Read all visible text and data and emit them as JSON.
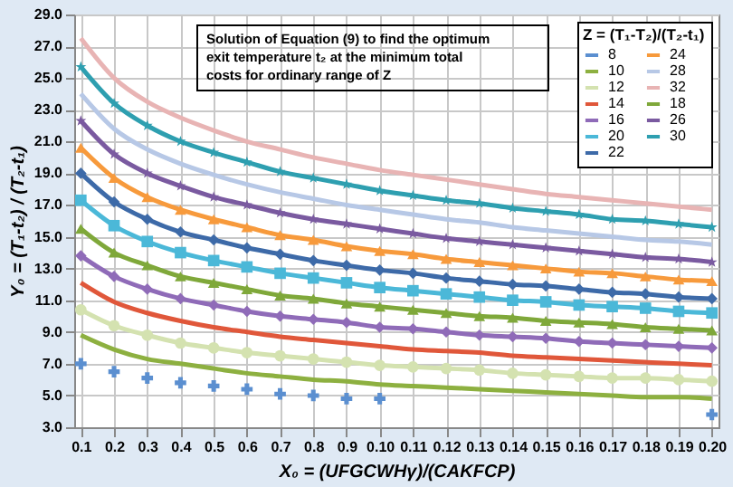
{
  "chart_data": {
    "type": "line",
    "annotations": [
      "Solution of Equation (9) to find the optimum\nexit temperature t₂ at the minimum total\ncosts for ordinary range of Z"
    ],
    "xlabel": "X₀ = (UFGCWHγ)/(CAKFCP)",
    "ylabel": "Y₀ = (T₁-t₂) / (T₂-t₁)",
    "legend_title": "Z = (T₁-T₂)/(T₂-t₁)",
    "categories": [
      "0.1",
      "0.2",
      "0.3",
      "0.4",
      "0.5",
      "0.6",
      "0.7",
      "0.8",
      "0.9",
      "0.10",
      "0.11",
      "0.12",
      "0.13",
      "0.14",
      "0.15",
      "0.16",
      "0.17",
      "0.18",
      "0.19",
      "0.20"
    ],
    "ylim": [
      3,
      29
    ],
    "yticks": [
      {
        "value": 3,
        "label": "3.0"
      },
      {
        "value": 5,
        "label": "5.0"
      },
      {
        "value": 7,
        "label": "7.0"
      },
      {
        "value": 9,
        "label": "9.0"
      },
      {
        "value": 11,
        "label": "11.0"
      },
      {
        "value": 13,
        "label": "13.0"
      },
      {
        "value": 15,
        "label": "15.0"
      },
      {
        "value": 17,
        "label": "17.0"
      },
      {
        "value": 19,
        "label": "19.0"
      },
      {
        "value": 21,
        "label": "21.0"
      },
      {
        "value": 23,
        "label": "23.0"
      },
      {
        "value": 25,
        "label": "25.0"
      },
      {
        "value": 27,
        "label": "27.0"
      },
      {
        "value": 29,
        "label": "29.0"
      }
    ],
    "grid": true,
    "legend": "top right",
    "series": [
      {
        "name": "8",
        "type": "scatter",
        "marker": "cross",
        "color": "#5b8fd0",
        "values": [
          7.0,
          6.5,
          6.1,
          5.8,
          5.6,
          5.4,
          5.1,
          5.0,
          4.8,
          4.8,
          null,
          null,
          null,
          null,
          null,
          null,
          null,
          null,
          null,
          3.8
        ]
      },
      {
        "name": "10",
        "marker": "none",
        "color": "#8db040",
        "values": [
          8.8,
          7.9,
          7.3,
          7.0,
          6.7,
          6.4,
          6.2,
          6.0,
          5.9,
          5.7,
          5.6,
          5.5,
          5.4,
          5.3,
          5.2,
          5.1,
          5.0,
          4.9,
          4.9,
          4.8
        ]
      },
      {
        "name": "12",
        "marker": "circle",
        "color": "#d4e2b0",
        "values": [
          10.4,
          9.4,
          8.8,
          8.3,
          8.0,
          7.7,
          7.5,
          7.3,
          7.1,
          6.9,
          6.8,
          6.7,
          6.6,
          6.4,
          6.3,
          6.2,
          6.1,
          6.1,
          6.0,
          5.9
        ]
      },
      {
        "name": "14",
        "marker": "none",
        "color": "#e0573a",
        "values": [
          12.1,
          10.9,
          10.2,
          9.7,
          9.3,
          9.0,
          8.7,
          8.5,
          8.3,
          8.1,
          7.9,
          7.8,
          7.7,
          7.5,
          7.4,
          7.3,
          7.2,
          7.1,
          7.0,
          6.9
        ]
      },
      {
        "name": "16",
        "marker": "diamond",
        "color": "#8f6bb8",
        "values": [
          13.8,
          12.5,
          11.7,
          11.1,
          10.7,
          10.3,
          10.0,
          9.8,
          9.6,
          9.3,
          9.2,
          9.0,
          8.8,
          8.7,
          8.6,
          8.4,
          8.3,
          8.2,
          8.1,
          8.0
        ]
      },
      {
        "name": "20",
        "marker": "square",
        "color": "#4bb8d8",
        "values": [
          17.3,
          15.7,
          14.7,
          14.0,
          13.5,
          13.1,
          12.7,
          12.4,
          12.1,
          11.8,
          11.6,
          11.4,
          11.2,
          11.0,
          10.9,
          10.7,
          10.6,
          10.5,
          10.3,
          10.2
        ]
      },
      {
        "name": "22",
        "marker": "diamond",
        "color": "#3d6aa8",
        "values": [
          19.0,
          17.2,
          16.1,
          15.3,
          14.8,
          14.3,
          13.9,
          13.5,
          13.2,
          12.9,
          12.7,
          12.4,
          12.2,
          12.0,
          11.9,
          11.7,
          11.5,
          11.4,
          11.2,
          11.1
        ]
      },
      {
        "name": "24",
        "marker": "triangle",
        "color": "#f79a3c",
        "values": [
          20.6,
          18.7,
          17.5,
          16.7,
          16.1,
          15.6,
          15.1,
          14.8,
          14.4,
          14.1,
          13.9,
          13.6,
          13.4,
          13.2,
          13.0,
          12.8,
          12.7,
          12.5,
          12.3,
          12.2
        ]
      },
      {
        "name": "28",
        "marker": "none",
        "color": "#b7c8e6",
        "values": [
          24.0,
          21.8,
          20.5,
          19.6,
          18.9,
          18.3,
          17.8,
          17.4,
          17.0,
          16.7,
          16.4,
          16.1,
          15.9,
          15.6,
          15.4,
          15.2,
          15.0,
          14.8,
          14.7,
          14.5
        ]
      },
      {
        "name": "32",
        "marker": "none",
        "color": "#e8b4b4",
        "values": [
          27.5,
          25.0,
          23.5,
          22.5,
          21.7,
          21.0,
          20.5,
          20.0,
          19.6,
          19.2,
          18.9,
          18.6,
          18.3,
          18.0,
          17.7,
          17.5,
          17.3,
          17.1,
          16.9,
          16.7
        ]
      },
      {
        "name": "18",
        "marker": "triangle",
        "color": "#7fa83a",
        "values": [
          15.5,
          14.0,
          13.2,
          12.5,
          12.1,
          11.7,
          11.3,
          11.1,
          10.8,
          10.6,
          10.4,
          10.2,
          10.0,
          9.9,
          9.7,
          9.6,
          9.5,
          9.3,
          9.2,
          9.1
        ]
      },
      {
        "name": "26",
        "marker": "star",
        "color": "#7a5aa0",
        "values": [
          22.3,
          20.2,
          19.0,
          18.2,
          17.5,
          17.0,
          16.5,
          16.1,
          15.8,
          15.5,
          15.2,
          14.9,
          14.7,
          14.5,
          14.3,
          14.1,
          13.9,
          13.7,
          13.6,
          13.4
        ]
      },
      {
        "name": "30",
        "marker": "star",
        "color": "#2e9fb0",
        "values": [
          25.7,
          23.4,
          22.0,
          21.0,
          20.3,
          19.7,
          19.1,
          18.7,
          18.3,
          17.9,
          17.6,
          17.3,
          17.1,
          16.8,
          16.6,
          16.4,
          16.1,
          16.0,
          15.8,
          15.6
        ]
      }
    ]
  }
}
